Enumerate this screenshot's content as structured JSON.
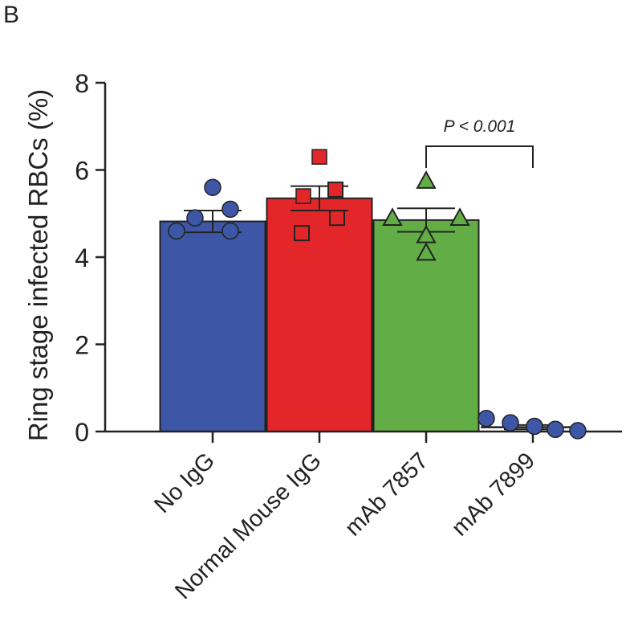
{
  "panel_label": "B",
  "chart_data": {
    "type": "bar",
    "title": "",
    "xlabel": "",
    "ylabel": "Ring stage infected RBCs (%)",
    "ylim": [
      0,
      8
    ],
    "yticks": [
      "0",
      "2",
      "4",
      "6",
      "8"
    ],
    "categories": [
      "No IgG",
      "Normal Mouse IgG",
      "mAb 7857",
      "mAb 7899"
    ],
    "values": [
      4.82,
      5.35,
      4.85,
      0.1
    ],
    "errors": [
      0.25,
      0.28,
      0.27,
      0.05
    ],
    "colors": [
      "#3d56a6",
      "#e3262a",
      "#62ad46",
      "#3d56a6"
    ],
    "markers": [
      "circle",
      "square",
      "triangle",
      "circle"
    ],
    "points": [
      [
        5.6,
        5.1,
        4.9,
        4.6,
        4.6
      ],
      [
        6.3,
        5.55,
        5.4,
        4.9,
        4.55
      ],
      [
        5.75,
        4.9,
        4.9,
        4.5,
        4.1
      ],
      [
        0.3,
        0.2,
        0.12,
        0.05,
        0.02
      ]
    ],
    "grid": false,
    "annotation": {
      "text": "P < 0.001",
      "between": [
        "mAb 7857",
        "mAb 7899"
      ]
    }
  }
}
